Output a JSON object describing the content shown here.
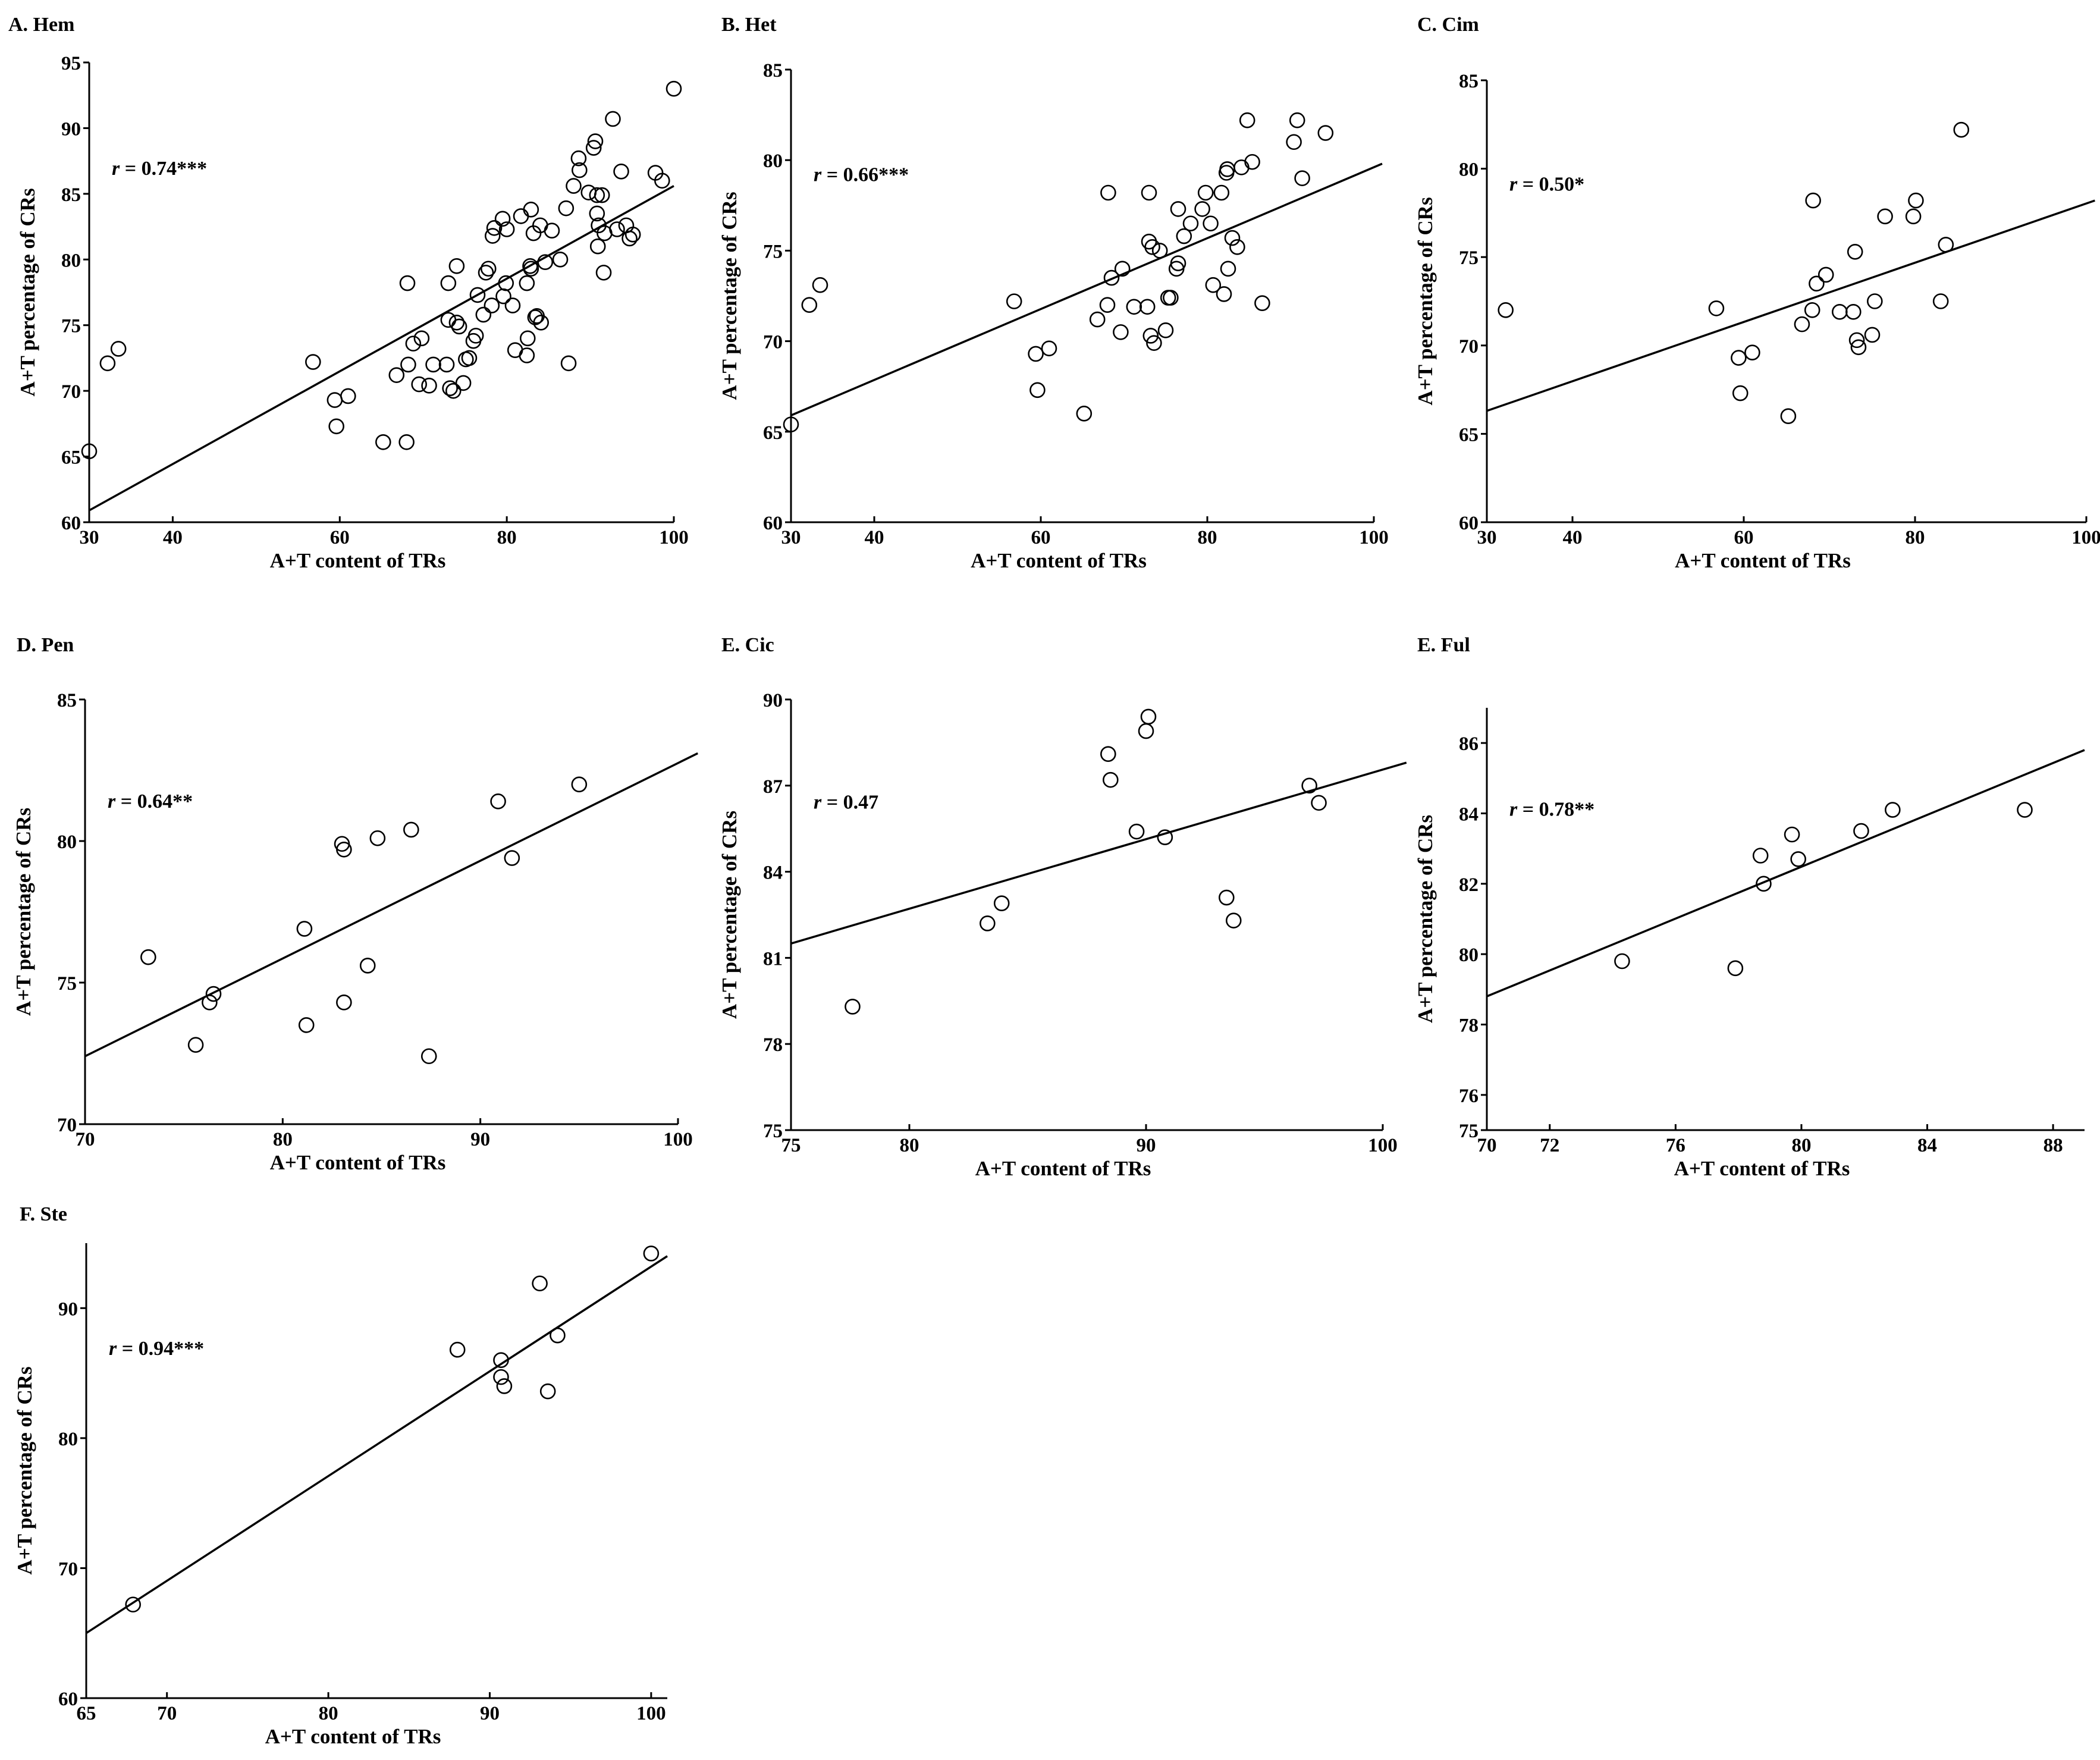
{
  "figure": {
    "x_axis_label": "A+T content of TRs",
    "y_axis_label": "A+T percentage of CRs"
  },
  "chart_data": [
    {
      "id": "A",
      "type": "scatter",
      "title": "A. Hem",
      "r_text": "r",
      "r_value": " = 0.74***",
      "xlabel": "A+T content of TRs",
      "ylabel": "A+T percentage of CRs",
      "xlim": [
        30,
        100
      ],
      "ylim": [
        60,
        95
      ],
      "xticks": [
        30,
        40,
        60,
        80,
        100
      ],
      "yticks": [
        60,
        65,
        70,
        75,
        80,
        85,
        90,
        95
      ],
      "fit_line": {
        "x": [
          30,
          100
        ],
        "y": [
          60.9,
          85.6
        ]
      },
      "points": [
        [
          30.0,
          65.4
        ],
        [
          32.2,
          72.1
        ],
        [
          33.5,
          73.2
        ],
        [
          56.8,
          72.2
        ],
        [
          59.4,
          69.3
        ],
        [
          59.6,
          67.3
        ],
        [
          61.0,
          69.6
        ],
        [
          65.2,
          66.1
        ],
        [
          66.8,
          71.2
        ],
        [
          68.0,
          66.1
        ],
        [
          68.1,
          78.2
        ],
        [
          68.2,
          72.0
        ],
        [
          68.8,
          73.6
        ],
        [
          69.5,
          70.5
        ],
        [
          69.8,
          74.0
        ],
        [
          70.7,
          70.4
        ],
        [
          71.2,
          72.0
        ],
        [
          72.8,
          72.0
        ],
        [
          73.0,
          78.2
        ],
        [
          73.0,
          75.4
        ],
        [
          73.2,
          70.2
        ],
        [
          73.6,
          70.0
        ],
        [
          74.0,
          75.2
        ],
        [
          74.0,
          79.5
        ],
        [
          74.3,
          74.9
        ],
        [
          74.8,
          70.6
        ],
        [
          75.1,
          72.4
        ],
        [
          75.5,
          72.5
        ],
        [
          76.0,
          73.8
        ],
        [
          76.3,
          74.2
        ],
        [
          76.5,
          77.3
        ],
        [
          77.2,
          75.8
        ],
        [
          77.5,
          79.0
        ],
        [
          77.8,
          79.3
        ],
        [
          78.2,
          76.5
        ],
        [
          78.3,
          81.8
        ],
        [
          78.5,
          82.4
        ],
        [
          79.5,
          83.1
        ],
        [
          79.6,
          77.2
        ],
        [
          79.9,
          78.2
        ],
        [
          80.0,
          82.3
        ],
        [
          80.7,
          76.5
        ],
        [
          81.0,
          73.1
        ],
        [
          81.7,
          83.3
        ],
        [
          82.4,
          72.7
        ],
        [
          82.4,
          78.2
        ],
        [
          82.5,
          74.0
        ],
        [
          82.8,
          79.5
        ],
        [
          82.9,
          79.3
        ],
        [
          82.9,
          83.8
        ],
        [
          83.2,
          82.0
        ],
        [
          83.4,
          75.6
        ],
        [
          83.6,
          75.7
        ],
        [
          84.0,
          82.6
        ],
        [
          84.1,
          75.2
        ],
        [
          84.6,
          79.8
        ],
        [
          85.4,
          82.2
        ],
        [
          86.4,
          80.0
        ],
        [
          87.1,
          83.9
        ],
        [
          87.4,
          72.1
        ],
        [
          88.0,
          85.6
        ],
        [
          88.6,
          87.7
        ],
        [
          88.7,
          86.8
        ],
        [
          89.8,
          85.1
        ],
        [
          90.4,
          88.5
        ],
        [
          90.6,
          89.0
        ],
        [
          90.8,
          83.5
        ],
        [
          90.8,
          84.9
        ],
        [
          90.9,
          81.0
        ],
        [
          91.0,
          82.6
        ],
        [
          91.4,
          84.9
        ],
        [
          91.6,
          79.0
        ],
        [
          91.7,
          82.0
        ],
        [
          92.7,
          90.7
        ],
        [
          93.2,
          82.3
        ],
        [
          93.7,
          86.7
        ],
        [
          94.3,
          82.6
        ],
        [
          94.7,
          81.6
        ],
        [
          95.1,
          81.9
        ],
        [
          97.8,
          86.6
        ],
        [
          98.6,
          86.0
        ],
        [
          100.0,
          93.0
        ]
      ]
    },
    {
      "id": "B",
      "type": "scatter",
      "title": "B. Het",
      "r_text": "r",
      "r_value": " = 0.66***",
      "xlabel": "A+T content of TRs",
      "ylabel": "A+T percentage of CRs",
      "xlim": [
        30,
        100
      ],
      "ylim": [
        60,
        85
      ],
      "xticks": [
        30,
        40,
        60,
        80,
        100
      ],
      "yticks": [
        60,
        65,
        70,
        75,
        80,
        85
      ],
      "fit_line": {
        "x": [
          30,
          101
        ],
        "y": [
          65.9,
          79.8
        ]
      },
      "points": [
        [
          30.0,
          65.4
        ],
        [
          32.2,
          72.0
        ],
        [
          33.5,
          73.1
        ],
        [
          56.8,
          72.2
        ],
        [
          59.4,
          69.3
        ],
        [
          59.6,
          67.3
        ],
        [
          61.0,
          69.6
        ],
        [
          65.2,
          66.0
        ],
        [
          66.8,
          71.2
        ],
        [
          68.0,
          72.0
        ],
        [
          68.1,
          78.2
        ],
        [
          68.5,
          73.5
        ],
        [
          69.6,
          70.5
        ],
        [
          69.8,
          74.0
        ],
        [
          71.2,
          71.9
        ],
        [
          72.8,
          71.9
        ],
        [
          73.0,
          78.2
        ],
        [
          73.0,
          75.5
        ],
        [
          73.2,
          70.3
        ],
        [
          73.4,
          75.2
        ],
        [
          73.6,
          69.9
        ],
        [
          74.3,
          75.0
        ],
        [
          75.0,
          70.6
        ],
        [
          75.3,
          72.4
        ],
        [
          75.6,
          72.4
        ],
        [
          76.3,
          74.0
        ],
        [
          76.5,
          74.3
        ],
        [
          76.5,
          77.3
        ],
        [
          77.2,
          75.8
        ],
        [
          78.0,
          76.5
        ],
        [
          79.4,
          77.3
        ],
        [
          79.8,
          78.2
        ],
        [
          80.4,
          76.5
        ],
        [
          80.7,
          73.1
        ],
        [
          81.7,
          78.2
        ],
        [
          82.0,
          72.6
        ],
        [
          82.3,
          79.3
        ],
        [
          82.4,
          79.5
        ],
        [
          82.5,
          74.0
        ],
        [
          83.0,
          75.7
        ],
        [
          83.6,
          75.2
        ],
        [
          84.1,
          79.6
        ],
        [
          84.8,
          82.2
        ],
        [
          85.4,
          79.9
        ],
        [
          86.6,
          72.1
        ],
        [
          90.4,
          81.0
        ],
        [
          90.8,
          82.2
        ],
        [
          91.4,
          79.0
        ],
        [
          94.2,
          81.5
        ]
      ]
    },
    {
      "id": "C",
      "type": "scatter",
      "title": "C. Cim",
      "r_text": "r",
      "r_value": " = 0.50*",
      "xlabel": "A+T content of TRs",
      "ylabel": "A+T percentage of CRs",
      "xlim": [
        30,
        100
      ],
      "ylim": [
        60,
        85
      ],
      "xticks": [
        30,
        40,
        60,
        80,
        100
      ],
      "yticks": [
        60,
        65,
        70,
        75,
        80,
        85
      ],
      "fit_line": {
        "x": [
          30,
          101
        ],
        "y": [
          66.3,
          78.2
        ]
      },
      "points": [
        [
          32.2,
          72.0
        ],
        [
          56.8,
          72.1
        ],
        [
          59.4,
          69.3
        ],
        [
          59.6,
          67.3
        ],
        [
          61.0,
          69.6
        ],
        [
          65.2,
          66.0
        ],
        [
          66.8,
          71.2
        ],
        [
          68.0,
          72.0
        ],
        [
          68.1,
          78.2
        ],
        [
          68.5,
          73.5
        ],
        [
          69.6,
          74.0
        ],
        [
          71.2,
          71.9
        ],
        [
          72.8,
          71.9
        ],
        [
          73.0,
          75.3
        ],
        [
          73.2,
          70.3
        ],
        [
          73.4,
          69.9
        ],
        [
          75.0,
          70.6
        ],
        [
          75.3,
          72.5
        ],
        [
          76.5,
          77.3
        ],
        [
          79.8,
          77.3
        ],
        [
          80.1,
          78.2
        ],
        [
          83.0,
          72.5
        ],
        [
          83.6,
          75.7
        ],
        [
          85.4,
          82.2
        ]
      ]
    },
    {
      "id": "D",
      "type": "scatter",
      "title": "D. Pen",
      "r_text": "r",
      "r_value": " = 0.64**",
      "xlabel": "A+T content of TRs",
      "ylabel": "A+T percentage of CRs",
      "xlim": [
        70,
        100
      ],
      "ylim": [
        70,
        85
      ],
      "xticks": [
        70,
        80,
        90,
        100
      ],
      "yticks": [
        70,
        75,
        80,
        85
      ],
      "fit_line": {
        "x": [
          70,
          101
        ],
        "y": [
          72.4,
          83.1
        ]
      },
      "points": [
        [
          73.2,
          75.9
        ],
        [
          75.6,
          72.8
        ],
        [
          76.3,
          74.3
        ],
        [
          76.5,
          74.6
        ],
        [
          81.1,
          76.9
        ],
        [
          81.2,
          73.5
        ],
        [
          83.0,
          79.9
        ],
        [
          83.1,
          79.7
        ],
        [
          83.1,
          74.3
        ],
        [
          84.3,
          75.6
        ],
        [
          84.8,
          80.1
        ],
        [
          86.5,
          80.4
        ],
        [
          87.4,
          72.4
        ],
        [
          90.9,
          81.4
        ],
        [
          91.6,
          79.4
        ],
        [
          95.0,
          82.0
        ]
      ]
    },
    {
      "id": "E",
      "type": "scatter",
      "title": "E. Cic",
      "r_text": "r",
      "r_value": " = 0.47",
      "xlabel": "A+T content of TRs",
      "ylabel": "A+T percentage of CRs",
      "xlim": [
        75,
        100
      ],
      "ylim": [
        75,
        90
      ],
      "xticks": [
        75,
        80,
        90,
        100
      ],
      "yticks": [
        75,
        78,
        81,
        84,
        87,
        90
      ],
      "fit_line": {
        "x": [
          75,
          101
        ],
        "y": [
          81.5,
          87.8
        ]
      },
      "points": [
        [
          77.6,
          79.3
        ],
        [
          83.3,
          82.2
        ],
        [
          83.9,
          82.9
        ],
        [
          88.4,
          88.1
        ],
        [
          88.5,
          87.2
        ],
        [
          89.6,
          85.4
        ],
        [
          90.0,
          88.9
        ],
        [
          90.1,
          89.4
        ],
        [
          90.8,
          85.2
        ],
        [
          93.4,
          83.1
        ],
        [
          93.7,
          82.3
        ],
        [
          96.9,
          87.0
        ],
        [
          97.3,
          86.4
        ]
      ]
    },
    {
      "id": "F",
      "type": "scatter",
      "title": "E. Ful",
      "r_text": "r",
      "r_value": " = 0.78**",
      "xlabel": "A+T content of TRs",
      "ylabel": "A+T percentage of CRs",
      "xlim": [
        70,
        89
      ],
      "ylim": [
        75,
        87
      ],
      "xticks": [
        70,
        72,
        76,
        80,
        84,
        88
      ],
      "yticks": [
        75,
        76,
        78,
        80,
        82,
        84,
        86
      ],
      "fit_line": {
        "x": [
          70,
          89
        ],
        "y": [
          78.8,
          85.8
        ]
      },
      "points": [
        [
          74.3,
          79.8
        ],
        [
          77.9,
          79.6
        ],
        [
          78.7,
          82.8
        ],
        [
          78.8,
          82.0
        ],
        [
          79.7,
          83.4
        ],
        [
          79.9,
          82.7
        ],
        [
          81.9,
          83.5
        ],
        [
          82.9,
          84.1
        ],
        [
          87.1,
          84.1
        ]
      ]
    },
    {
      "id": "G",
      "type": "scatter",
      "title": "F. Ste",
      "r_text": "r",
      "r_value": " = 0.94***",
      "xlabel": "A+T content of TRs",
      "ylabel": "A+T percentage of CRs",
      "xlim": [
        65,
        101
      ],
      "ylim": [
        60,
        95
      ],
      "xticks": [
        65,
        70,
        80,
        90,
        100
      ],
      "yticks": [
        60,
        70,
        80,
        90
      ],
      "fit_line": {
        "x": [
          65,
          101
        ],
        "y": [
          65.0,
          94.0
        ]
      },
      "points": [
        [
          67.9,
          67.2
        ],
        [
          88.0,
          86.8
        ],
        [
          90.7,
          86.0
        ],
        [
          90.7,
          84.7
        ],
        [
          90.9,
          84.0
        ],
        [
          93.1,
          91.9
        ],
        [
          93.6,
          83.6
        ],
        [
          94.2,
          87.9
        ],
        [
          100.0,
          94.2
        ]
      ]
    }
  ]
}
